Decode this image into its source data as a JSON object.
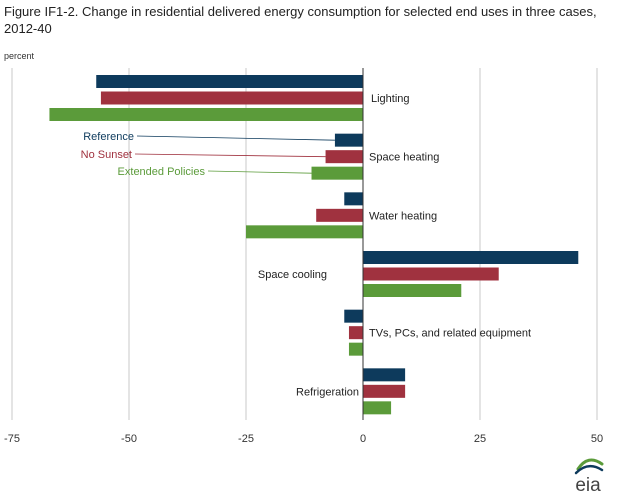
{
  "chart_data": {
    "type": "bar",
    "orientation": "horizontal",
    "title": "Figure IF1-2. Change in residential delivered energy consumption for selected end uses in three cases, 2012-40",
    "ylabel": "percent",
    "xlim": [
      -75,
      50
    ],
    "xticks": [
      -75,
      -50,
      -25,
      0,
      25,
      50
    ],
    "tick_labels": [
      "-75",
      "-50",
      "-25",
      "0",
      "25",
      "50"
    ],
    "grid": "vertical",
    "categories": [
      "Lighting",
      "Space heating",
      "Water heating",
      "Space cooling",
      "TVs, PCs, and related equipment",
      "Refrigeration"
    ],
    "series": [
      {
        "name": "Reference",
        "color": "#0d3a5c",
        "values": [
          -57,
          -6,
          -4,
          46,
          -4,
          9
        ]
      },
      {
        "name": "No Sunset",
        "color": "#a0323f",
        "values": [
          -56,
          -8,
          -10,
          29,
          -3,
          9
        ]
      },
      {
        "name": "Extended Policies",
        "color": "#5b9b3a",
        "values": [
          -67,
          -11,
          -25,
          21,
          -3,
          6
        ]
      }
    ]
  },
  "logo_text": "eia"
}
